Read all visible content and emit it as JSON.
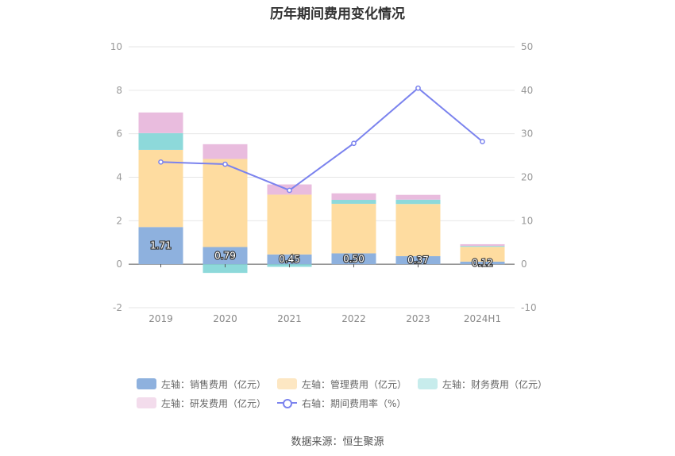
{
  "chart_data": {
    "type": "bar",
    "title": "历年期间费用变化情况",
    "categories": [
      "2019",
      "2020",
      "2021",
      "2022",
      "2023",
      "2024H1"
    ],
    "left_axis": {
      "ylim": [
        -2,
        10
      ],
      "ticks": [
        "10",
        "8",
        "6",
        "4",
        "2",
        "0",
        "-2"
      ],
      "tick_values": [
        10,
        8,
        6,
        4,
        2,
        0,
        -2
      ]
    },
    "right_axis": {
      "ylim": [
        -10,
        50
      ],
      "ticks": [
        "50",
        "40",
        "30",
        "20",
        "10",
        "0",
        "-10"
      ],
      "tick_values": [
        50,
        40,
        30,
        20,
        10,
        0,
        -10
      ]
    },
    "series": [
      {
        "name": "左轴：销售费用（亿元）",
        "type": "bar",
        "stack": "left",
        "color": "#8eb1de",
        "values": [
          1.71,
          0.79,
          0.45,
          0.5,
          0.37,
          0.12
        ],
        "labels": [
          "1.71",
          "0.79",
          "0.45",
          "0.50",
          "0.37",
          "0.12"
        ]
      },
      {
        "name": "左轴：管理费用（亿元）",
        "type": "bar",
        "stack": "left",
        "color": "#fedca0",
        "values": [
          3.55,
          4.05,
          2.75,
          2.28,
          2.4,
          0.68
        ]
      },
      {
        "name": "左轴：财务费用（亿元）",
        "type": "bar",
        "stack": "left",
        "color": "#8dd9da",
        "values": [
          0.77,
          -0.4,
          -0.12,
          0.18,
          0.2,
          0.04
        ]
      },
      {
        "name": "左轴：研发费用（亿元）",
        "type": "bar",
        "stack": "left",
        "color": "#e9bcde",
        "values": [
          0.95,
          0.68,
          0.47,
          0.3,
          0.22,
          0.08
        ]
      },
      {
        "name": "右轴：期间费用率（%）",
        "type": "line",
        "axis": "right",
        "color": "#7b83ee",
        "values": [
          23.5,
          23.0,
          17.0,
          27.8,
          40.5,
          28.2
        ]
      }
    ],
    "legend_placement": "bottom",
    "grid": true
  },
  "legend": [
    {
      "label": "左轴：销售费用（亿元）",
      "color": "#8eb1de",
      "kind": "bar"
    },
    {
      "label": "左轴：管理费用（亿元）",
      "color": "#fedca0",
      "kind": "bar"
    },
    {
      "label": "左轴：财务费用（亿元）",
      "color": "#c7ecec",
      "kind": "bar"
    },
    {
      "label": "左轴：研发费用（亿元）",
      "color": "#f3dcec",
      "kind": "bar"
    },
    {
      "label": "右轴：期间费用率（%）",
      "color": "#7b83ee",
      "kind": "line"
    }
  ],
  "source": "数据来源：恒生聚源"
}
